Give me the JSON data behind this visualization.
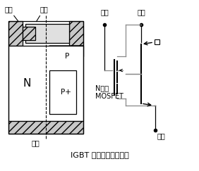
{
  "title": "IGBT 的构造及等值电路",
  "title_fontsize": 8,
  "bg_color": "#ffffff",
  "line_color": "#000000",
  "labels": {
    "gate_left": "栅极",
    "source_left": "源极",
    "drain_left": "漏极",
    "N_label": "N",
    "Pplus_label": "P+",
    "P_label": "P",
    "gate_right": "栅极",
    "source_right": "源极",
    "drain_right": "漏极",
    "mosfet_label": "N沟道",
    "mosfet_label2": "MOSFET"
  }
}
